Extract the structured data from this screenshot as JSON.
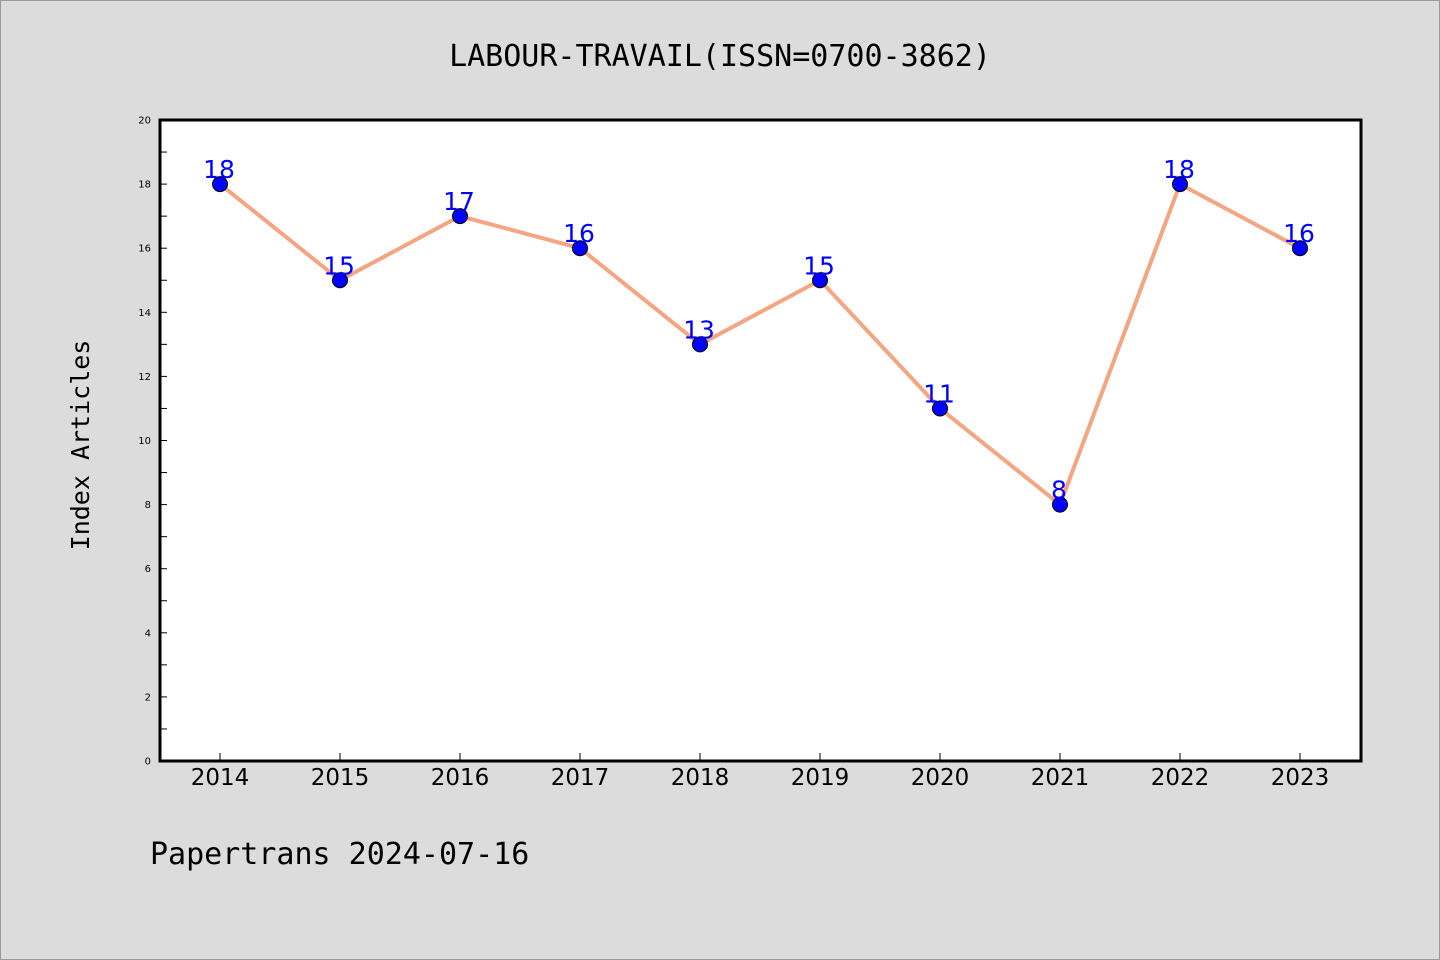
{
  "chart_data": {
    "type": "line",
    "title": "LABOUR-TRAVAIL(ISSN=0700-3862)",
    "xlabel": "",
    "ylabel": "Index Articles",
    "categories": [
      "2014",
      "2015",
      "2016",
      "2017",
      "2018",
      "2019",
      "2020",
      "2021",
      "2022",
      "2023"
    ],
    "values": [
      18,
      15,
      17,
      16,
      13,
      15,
      11,
      8,
      18,
      16
    ],
    "ylim": [
      0,
      20
    ],
    "yticks": [
      0,
      2,
      4,
      6,
      8,
      10,
      12,
      14,
      16,
      18,
      20
    ],
    "grid": false,
    "data_labels": true,
    "colors": {
      "line": "#f4a582",
      "marker": "#0000ff",
      "label": "#0000ff",
      "background": "#dcdcdc",
      "plot_area": "#ffffff"
    }
  },
  "footer": {
    "credit": "Papertrans 2024-07-16"
  }
}
